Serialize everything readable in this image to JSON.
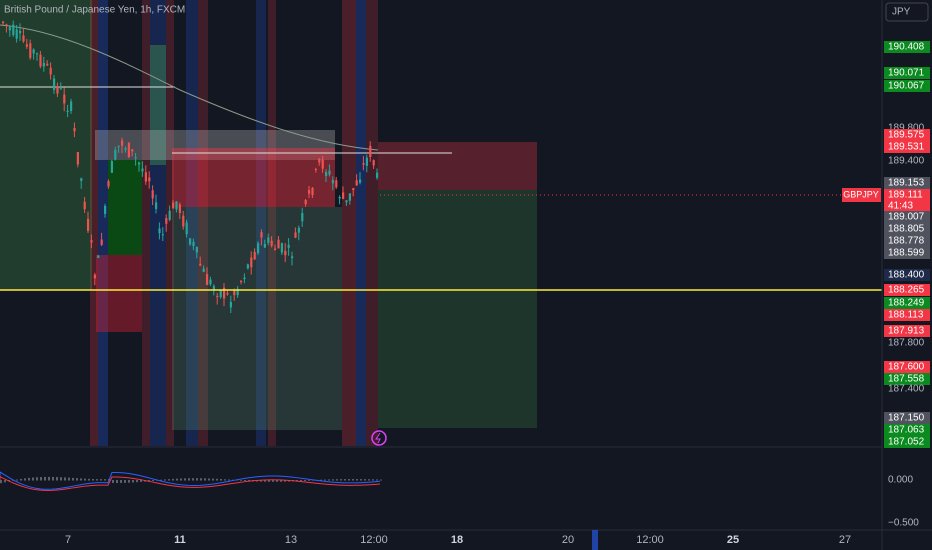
{
  "header": {
    "title": "British Pound / Japanese Yen, 1h, FXCM",
    "currency": "JPY"
  },
  "symbol_tag": {
    "symbol": "GBPJPY",
    "price": "189.111",
    "countdown": "41:43"
  },
  "price_axis": [
    {
      "label": "190.408",
      "kind": "green"
    },
    {
      "label": "190.071",
      "kind": "green"
    },
    {
      "label": "190.067",
      "kind": "green"
    },
    {
      "label": "189.800",
      "kind": "plain"
    },
    {
      "label": "189.575",
      "kind": "red"
    },
    {
      "label": "189.531",
      "kind": "red"
    },
    {
      "label": "189.400",
      "kind": "plain"
    },
    {
      "label": "189.153",
      "kind": "gray"
    },
    {
      "label": "189.007",
      "kind": "gray"
    },
    {
      "label": "188.805",
      "kind": "gray"
    },
    {
      "label": "188.778",
      "kind": "gray"
    },
    {
      "label": "188.599",
      "kind": "gray"
    },
    {
      "label": "188.400",
      "kind": "blue"
    },
    {
      "label": "188.265",
      "kind": "red"
    },
    {
      "label": "188.249",
      "kind": "green"
    },
    {
      "label": "188.113",
      "kind": "red"
    },
    {
      "label": "187.913",
      "kind": "red"
    },
    {
      "label": "187.800",
      "kind": "plain"
    },
    {
      "label": "187.600",
      "kind": "red"
    },
    {
      "label": "187.558",
      "kind": "green"
    },
    {
      "label": "187.400",
      "kind": "plain"
    },
    {
      "label": "187.150",
      "kind": "gray"
    },
    {
      "label": "187.063",
      "kind": "green"
    },
    {
      "label": "187.052",
      "kind": "green"
    }
  ],
  "indicator_axis": [
    "0.000",
    "−0.500"
  ],
  "time_axis": [
    "7",
    "11",
    "13",
    "12:00",
    "18",
    "20",
    "12:00",
    "25",
    "27"
  ]
}
